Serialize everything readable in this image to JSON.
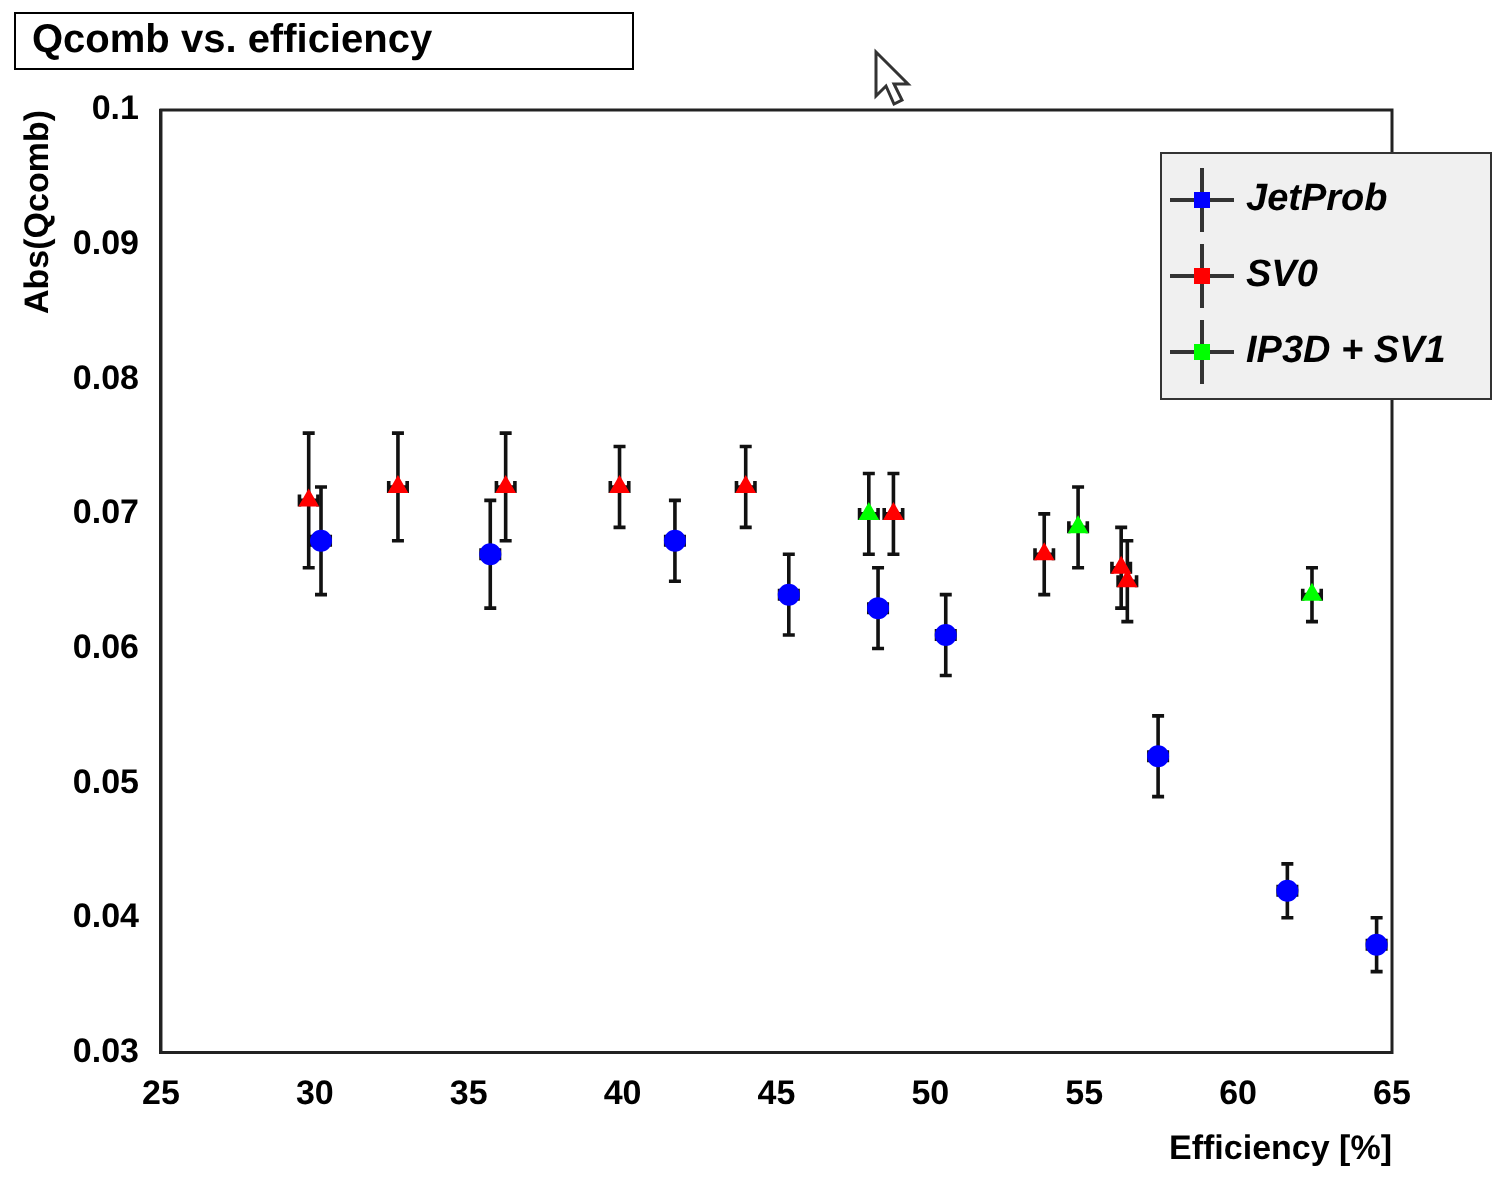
{
  "chart_data": {
    "type": "scatter",
    "title": "Qcomb vs. efficiency",
    "xlabel": "Efficiency [%]",
    "ylabel": "Abs(Qcomb)",
    "xlim": [
      25,
      65
    ],
    "xticks": [
      25,
      30,
      35,
      40,
      45,
      50,
      55,
      60,
      65
    ],
    "ylim": [
      0.03,
      0.1
    ],
    "yticks": [
      0.03,
      0.04,
      0.05,
      0.06,
      0.07,
      0.08,
      0.09,
      0.1
    ],
    "grid": false,
    "legend": "top right",
    "series": [
      {
        "name": "JetProb",
        "color": "#0000ff",
        "marker": "circle",
        "x": [
          30.2,
          35.7,
          41.7,
          45.4,
          48.3,
          50.5,
          57.4,
          61.6,
          64.5
        ],
        "values": [
          0.068,
          0.067,
          0.068,
          0.064,
          0.063,
          0.061,
          0.052,
          0.042,
          0.038
        ],
        "errors": [
          0.004,
          0.004,
          0.003,
          0.003,
          0.003,
          0.003,
          0.003,
          0.002,
          0.002
        ],
        "xerrors": [
          0.3,
          0.3,
          0.3,
          0.3,
          0.3,
          0.3,
          0.3,
          0.3,
          0.3
        ]
      },
      {
        "name": "SV0",
        "color": "#ff0000",
        "marker": "triangle",
        "x": [
          29.8,
          32.7,
          36.2,
          39.9,
          44.0,
          48.8,
          53.7,
          56.2,
          56.4
        ],
        "values": [
          0.071,
          0.072,
          0.072,
          0.072,
          0.072,
          0.07,
          0.067,
          0.066,
          0.065
        ],
        "errors": [
          0.005,
          0.004,
          0.004,
          0.003,
          0.003,
          0.003,
          0.003,
          0.003,
          0.003
        ],
        "xerrors": [
          0.3,
          0.3,
          0.3,
          0.3,
          0.3,
          0.3,
          0.3,
          0.3,
          0.3
        ]
      },
      {
        "name": "IP3D + SV1",
        "color": "#00ff00",
        "marker": "triangle",
        "x": [
          48.0,
          54.8,
          62.4
        ],
        "values": [
          0.07,
          0.069,
          0.064
        ],
        "errors": [
          0.003,
          0.003,
          0.002
        ],
        "xerrors": [
          0.3,
          0.3,
          0.3
        ]
      }
    ]
  }
}
